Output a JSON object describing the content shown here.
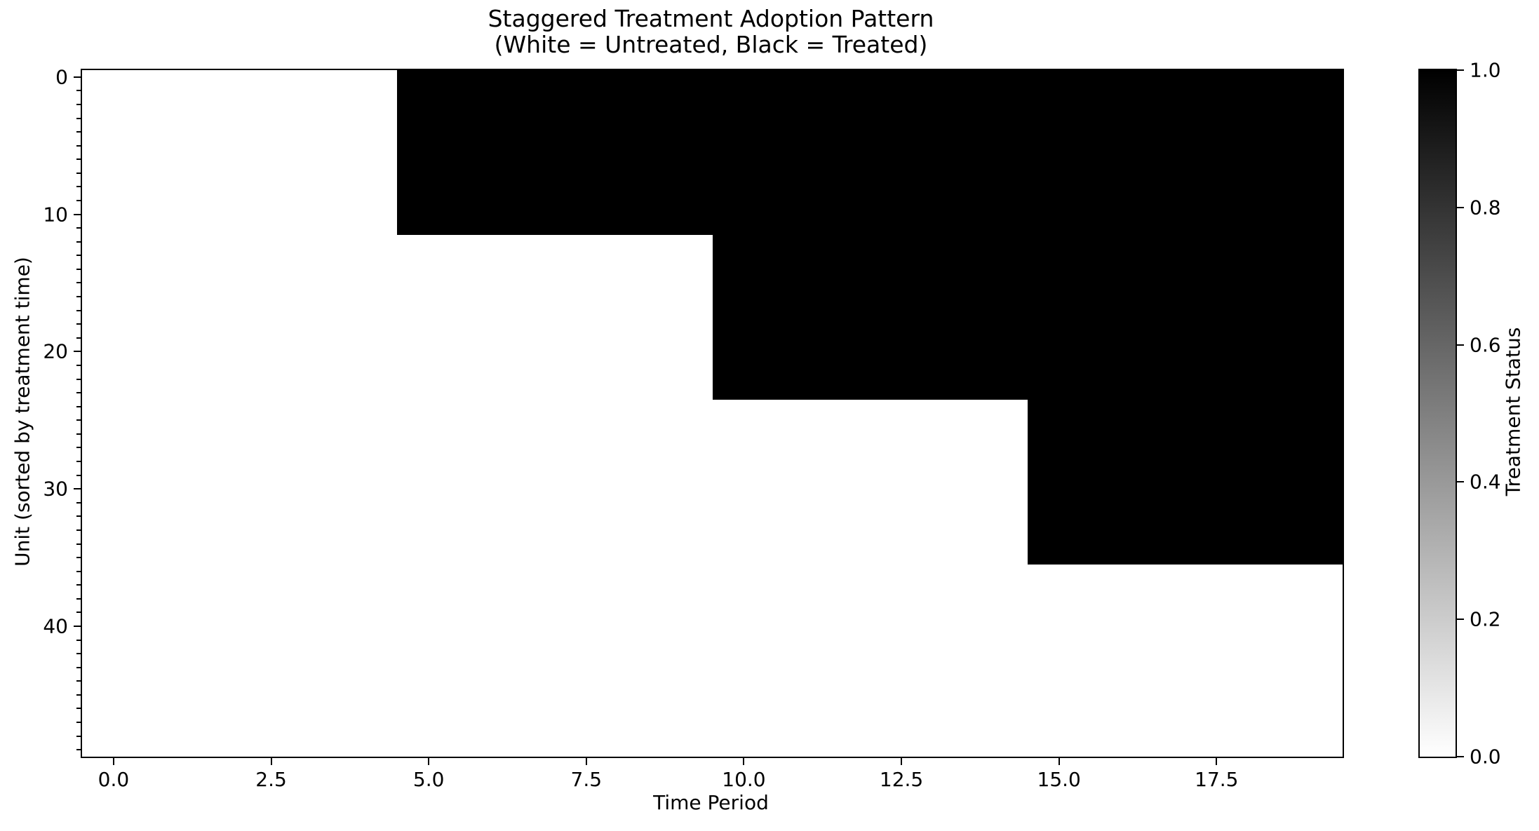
{
  "chart_data": {
    "type": "heatmap",
    "title_lines": [
      "Staggered Treatment Adoption Pattern",
      "(White = Untreated, Black = Treated)"
    ],
    "xlabel": "Time Period",
    "ylabel": "Unit (sorted by treatment time)",
    "colorbar_label": "Treatment Status",
    "n_units": 50,
    "n_periods": 20,
    "x_extent": [
      -0.5,
      19.5
    ],
    "y_extent": [
      -0.5,
      49.5
    ],
    "x_tick_values": [
      0,
      2.5,
      5,
      7.5,
      10,
      12.5,
      15,
      17.5
    ],
    "x_tick_labels": [
      "0.0",
      "2.5",
      "5.0",
      "7.5",
      "10.0",
      "12.5",
      "15.0",
      "17.5"
    ],
    "y_tick_values": [
      0,
      10,
      20,
      30,
      40
    ],
    "y_tick_labels": [
      "0",
      "10",
      "20",
      "30",
      "40"
    ],
    "y_minor_tick_step": 1,
    "colorbar_tick_values": [
      1.0,
      0.8,
      0.6,
      0.4,
      0.2,
      0.0
    ],
    "colorbar_tick_labels": [
      "1.0",
      "0.8",
      "0.6",
      "0.4",
      "0.2",
      "0.0"
    ],
    "colorbar_range": [
      0.0,
      1.0
    ],
    "value_legend": {
      "untreated": 0,
      "treated": 1
    },
    "colors": {
      "treated": "#000000",
      "untreated": "#ffffff",
      "axis": "#000000"
    },
    "treatment_groups": [
      {
        "units_from": 0,
        "units_to": 11,
        "adoption_period": 5
      },
      {
        "units_from": 12,
        "units_to": 23,
        "adoption_period": 10
      },
      {
        "units_from": 24,
        "units_to": 35,
        "adoption_period": 15
      },
      {
        "units_from": 36,
        "units_to": 49,
        "adoption_period": null
      }
    ],
    "grid": false,
    "legend_position": "none"
  }
}
